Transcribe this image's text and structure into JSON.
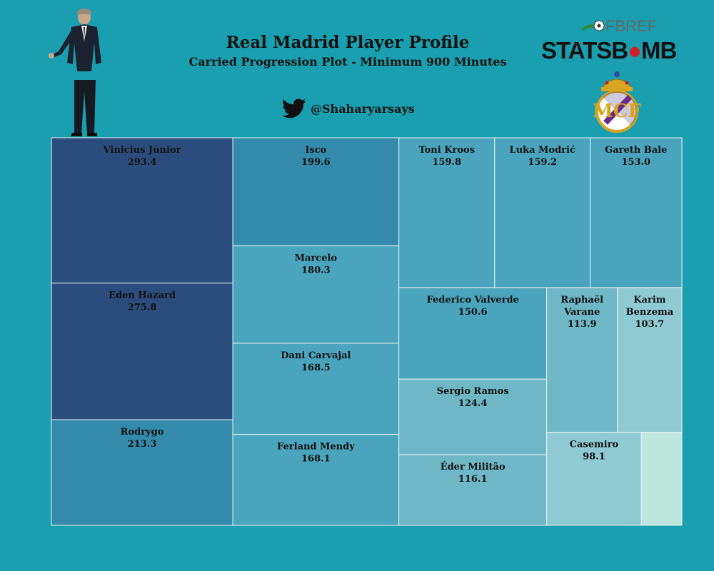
{
  "header": {
    "title": "Real Madrid Player Profile",
    "subtitle": "Carried Progression Plot - Minimum 900 Minutes",
    "twitter_handle": "@Shaharyarsays"
  },
  "logos": {
    "fbref_text": "FBREF",
    "statsbomb_text_a": "STATSB",
    "statsbomb_text_b": "MB"
  },
  "colors": {
    "background": "#1a9fb0",
    "tile_border": "#e8f4f6",
    "scale": [
      "#2a4d7e",
      "#2e5f8a",
      "#348aab",
      "#4aa4bd",
      "#6fb7c7",
      "#8fcad3",
      "#c0e5dc"
    ]
  },
  "chart_data": {
    "type": "treemap",
    "title": "Real Madrid Player Profile",
    "subtitle": "Carried Progression Plot - Minimum 900 Minutes",
    "items": [
      {
        "name": "Vinicius Júnior",
        "value": 293.4
      },
      {
        "name": "Eden Hazard",
        "value": 275.8
      },
      {
        "name": "Rodrygo",
        "value": 213.3
      },
      {
        "name": "Isco",
        "value": 199.6
      },
      {
        "name": "Marcelo",
        "value": 180.3
      },
      {
        "name": "Dani Carvajal",
        "value": 168.5
      },
      {
        "name": "Ferland Mendy",
        "value": 168.1
      },
      {
        "name": "Toni Kroos",
        "value": 159.8
      },
      {
        "name": "Luka Modrić",
        "value": 159.2
      },
      {
        "name": "Gareth Bale",
        "value": 153.0
      },
      {
        "name": "Federico Valverde",
        "value": 150.6
      },
      {
        "name": "Raphaël Varane",
        "value": 113.9
      },
      {
        "name": "Karim Benzema",
        "value": 103.7
      },
      {
        "name": "Sergio Ramos",
        "value": 124.4
      },
      {
        "name": "Éder Militão",
        "value": 116.1
      },
      {
        "name": "Casemiro",
        "value": 98.1
      },
      {
        "name": "",
        "value": 42
      }
    ]
  }
}
